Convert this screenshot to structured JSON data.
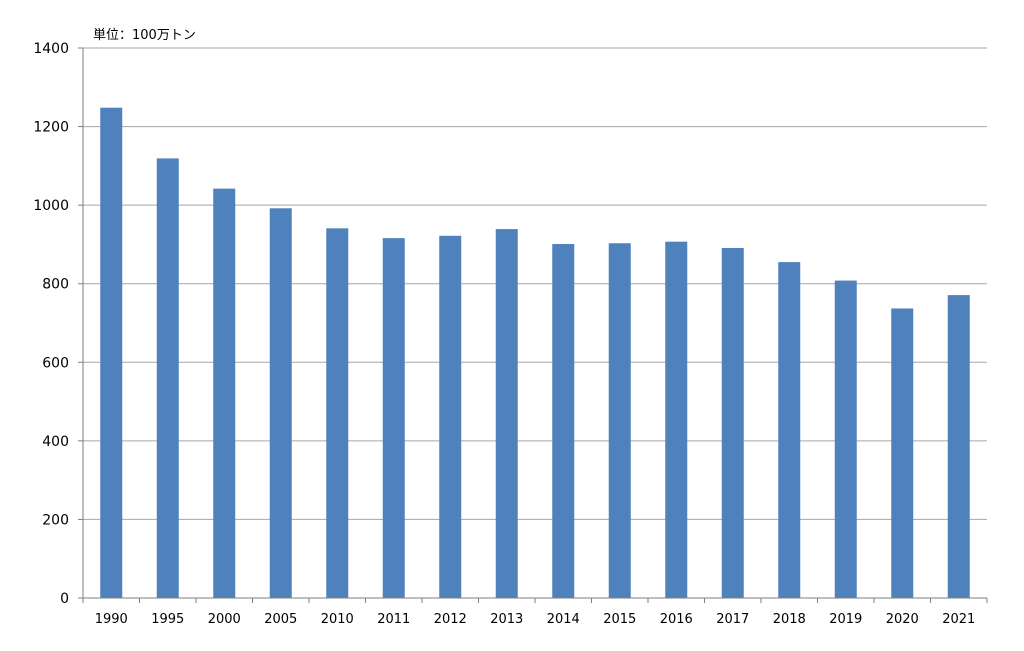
{
  "chart_data": {
    "type": "bar",
    "unit_label": "単位：100万トン",
    "categories": [
      "1990",
      "1995",
      "2000",
      "2005",
      "2010",
      "2011",
      "2012",
      "2013",
      "2014",
      "2015",
      "2016",
      "2017",
      "2018",
      "2019",
      "2020",
      "2021"
    ],
    "values": [
      1248,
      1119,
      1042,
      992,
      941,
      916,
      922,
      939,
      901,
      903,
      907,
      891,
      855,
      808,
      737,
      771
    ],
    "ylim": [
      0,
      1400
    ],
    "yticks": [
      0,
      200,
      400,
      600,
      800,
      1000,
      1200,
      1400
    ],
    "bar_color": "#4f81bd",
    "grid": true
  }
}
